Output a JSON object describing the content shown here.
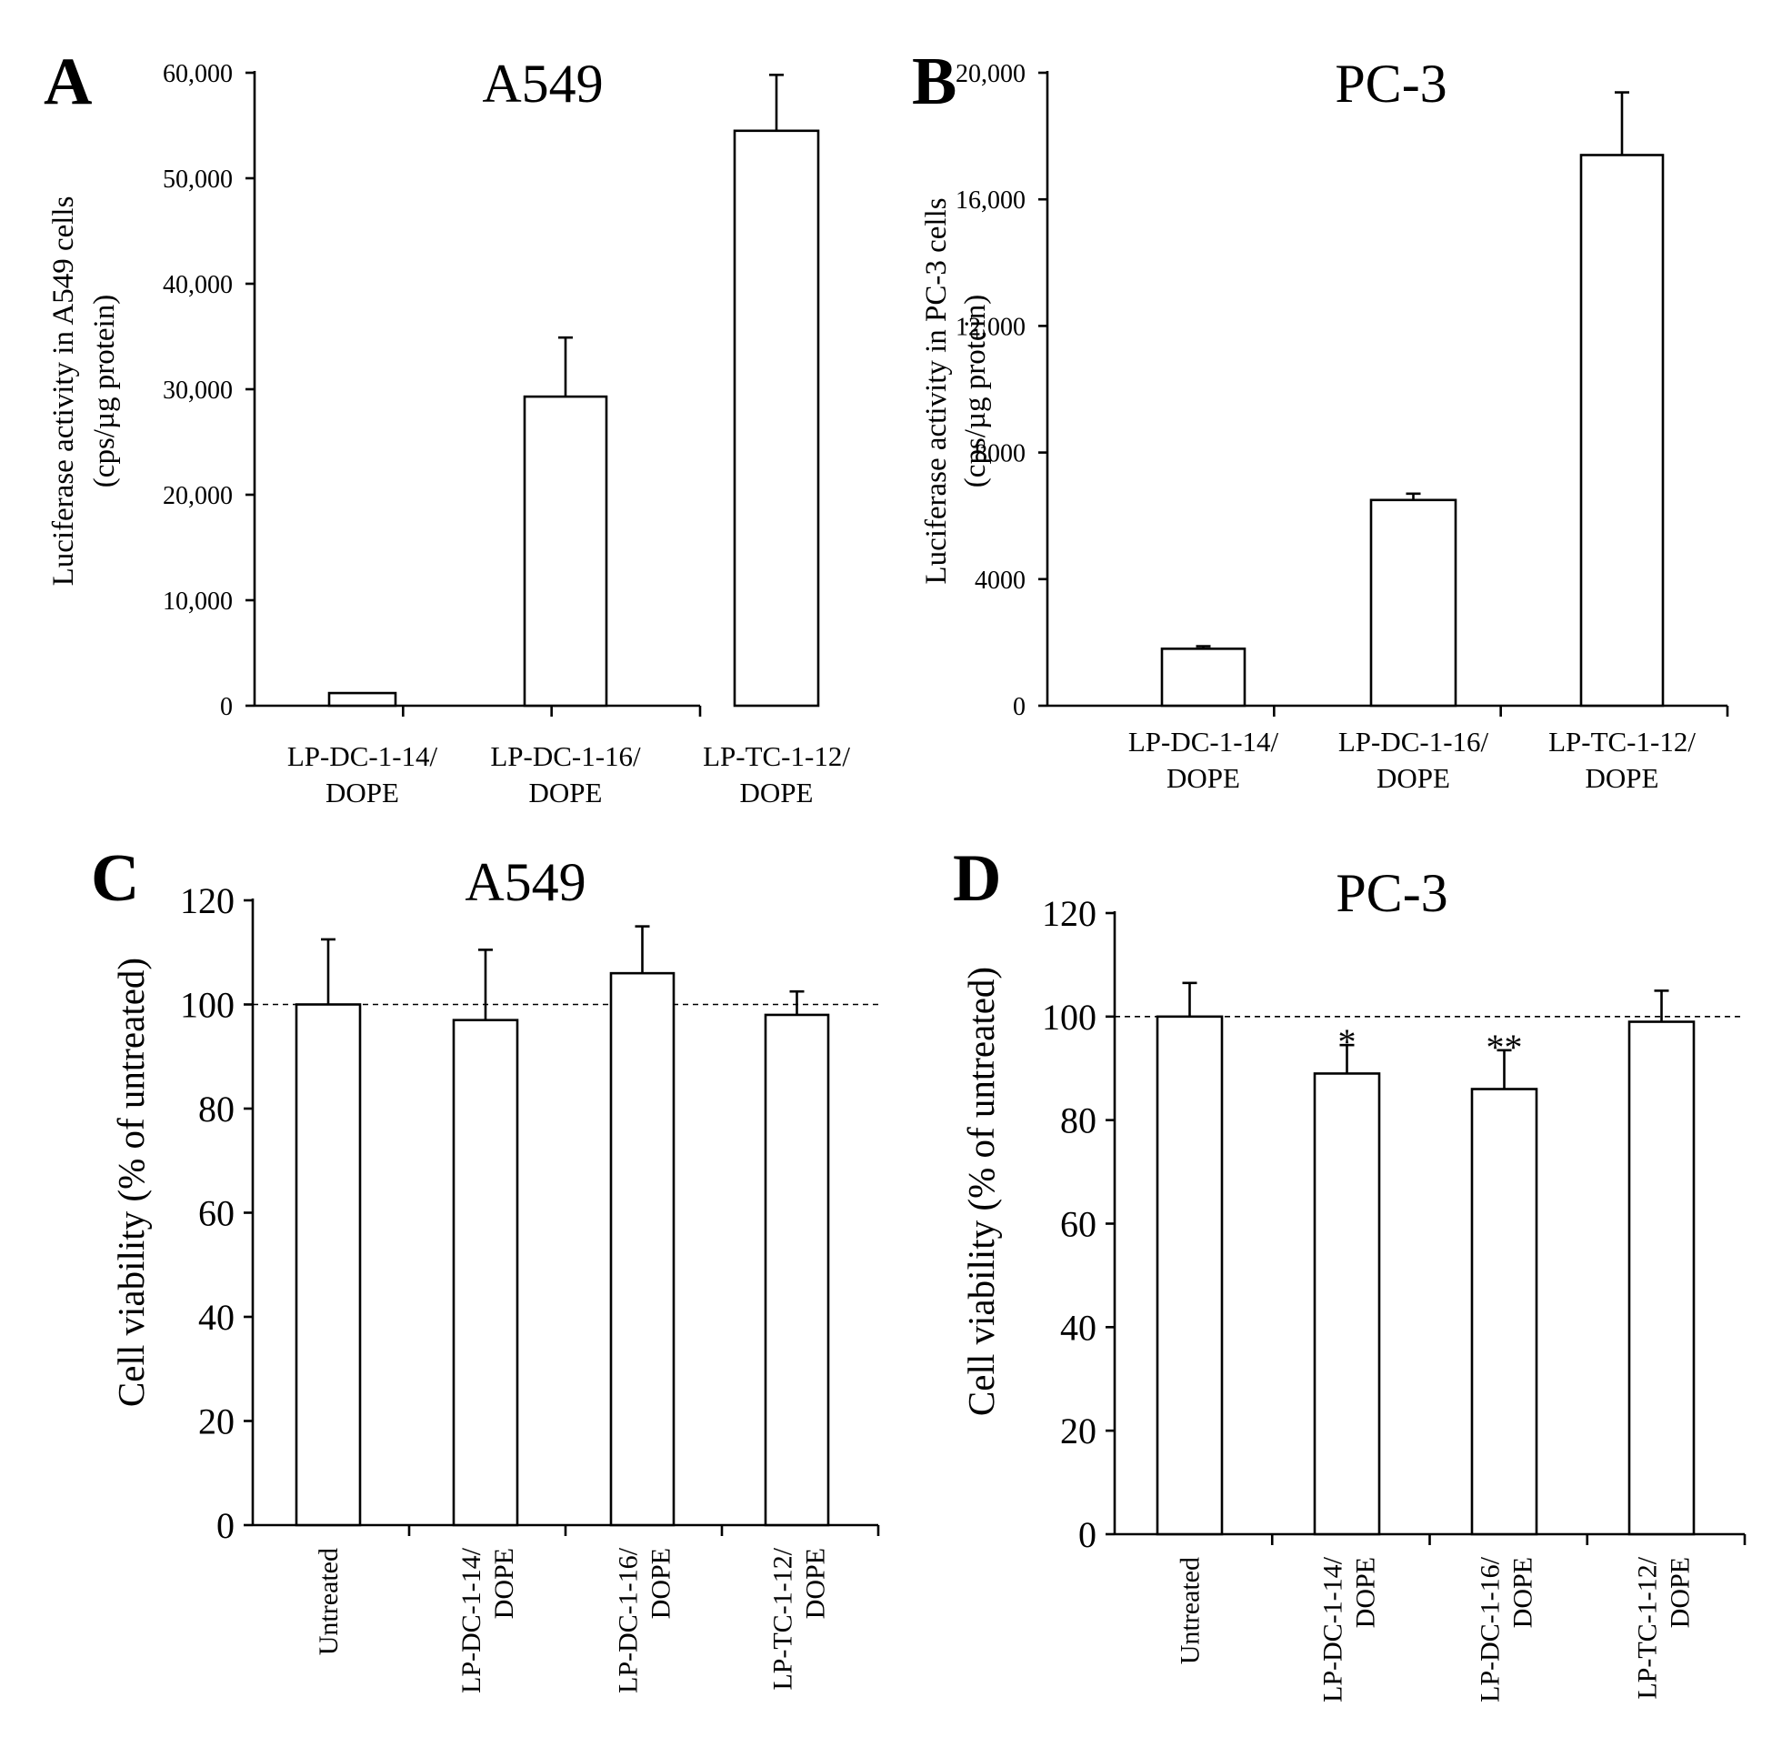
{
  "chart_data": [
    {
      "panel": "A",
      "type": "bar",
      "title": "A549",
      "ylabel_line1": "Luciferase activity in A549 cells",
      "ylabel_line2": "(cps/µg protein)",
      "ylim": [
        0,
        60000
      ],
      "yticks": [
        0,
        10000,
        20000,
        30000,
        40000,
        50000,
        60000
      ],
      "ytick_labels": [
        "0",
        "10,000",
        "20,000",
        "30,000",
        "40,000",
        "50,000",
        "60,000"
      ],
      "categories": [
        [
          "LP-DC-1-14/",
          "DOPE"
        ],
        [
          "LP-DC-1-16/",
          "DOPE"
        ],
        [
          "LP-TC-1-12/",
          "DOPE"
        ]
      ],
      "values": [
        1200,
        29300,
        54500
      ],
      "errors": [
        0,
        5600,
        5300
      ]
    },
    {
      "panel": "B",
      "type": "bar",
      "title": "PC-3",
      "ylabel_line1": "Luciferase activity in PC-3 cells",
      "ylabel_line2": "(cps/µg protein)",
      "ylim": [
        0,
        20000
      ],
      "yticks": [
        0,
        4000,
        8000,
        12000,
        16000,
        20000
      ],
      "ytick_labels": [
        "0",
        "4000",
        "8000",
        "12,000",
        "16,000",
        "20,000"
      ],
      "categories": [
        [
          "LP-DC-1-14/",
          "DOPE"
        ],
        [
          "LP-DC-1-16/",
          "DOPE"
        ],
        [
          "LP-TC-1-12/",
          "DOPE"
        ]
      ],
      "values": [
        1800,
        6500,
        17400
      ],
      "errors": [
        80,
        200,
        1980
      ]
    },
    {
      "panel": "C",
      "type": "bar",
      "title": "A549",
      "ylabel": "Cell viability (% of untreated)",
      "ylim": [
        0,
        120
      ],
      "yticks": [
        0,
        20,
        40,
        60,
        80,
        100,
        120
      ],
      "ytick_labels": [
        "0",
        "20",
        "40",
        "60",
        "80",
        "100",
        "120"
      ],
      "reference_line": 100,
      "categories": [
        [
          "Untreated"
        ],
        [
          "LP-DC-1-14/",
          "DOPE"
        ],
        [
          "LP-DC-1-16/",
          "DOPE"
        ],
        [
          "LP-TC-1-12/",
          "DOPE"
        ]
      ],
      "values": [
        100,
        97,
        106,
        98
      ],
      "errors": [
        12.5,
        13.5,
        9,
        4.5
      ],
      "annotations": [
        "",
        "",
        "",
        ""
      ]
    },
    {
      "panel": "D",
      "type": "bar",
      "title": "PC-3",
      "ylabel": "Cell viability (% of untreated)",
      "ylim": [
        0,
        120
      ],
      "yticks": [
        0,
        20,
        40,
        60,
        80,
        100,
        120
      ],
      "ytick_labels": [
        "0",
        "20",
        "40",
        "60",
        "80",
        "100",
        "120"
      ],
      "reference_line": 100,
      "categories": [
        [
          "Untreated"
        ],
        [
          "LP-DC-1-14/",
          "DOPE"
        ],
        [
          "LP-DC-1-16/",
          "DOPE"
        ],
        [
          "LP-TC-1-12/",
          "DOPE"
        ]
      ],
      "values": [
        100,
        89,
        86,
        99
      ],
      "errors": [
        6.5,
        5.5,
        7.5,
        6
      ],
      "annotations": [
        "",
        "*",
        "**",
        ""
      ]
    }
  ]
}
